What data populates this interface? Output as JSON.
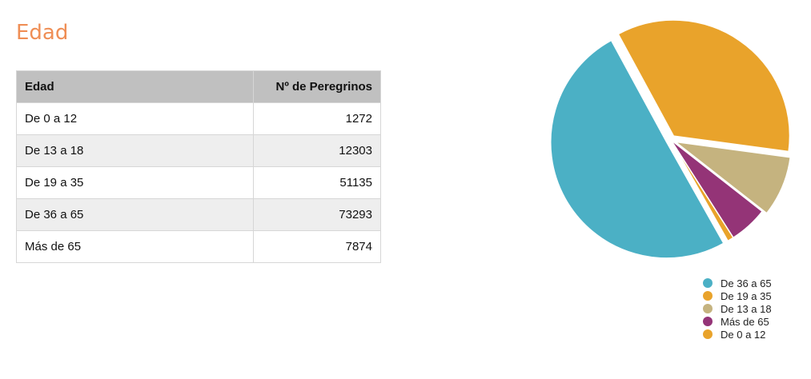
{
  "title": "Edad",
  "table": {
    "headers": [
      "Edad",
      "Nº de Peregrinos"
    ],
    "rows": [
      [
        "De 0 a 12",
        "1272"
      ],
      [
        "De 13 a 18",
        "12303"
      ],
      [
        "De 19 a 35",
        "51135"
      ],
      [
        "De 36 a 65",
        "73293"
      ],
      [
        "Más de 65",
        "7874"
      ]
    ]
  },
  "chart_data": {
    "type": "pie",
    "slices": [
      {
        "label": "De 19 a 35",
        "value": 51135,
        "color": "#e9a32b",
        "exploded": true
      },
      {
        "label": "De 13 a 18",
        "value": 12303,
        "color": "#c5b37f",
        "exploded": true
      },
      {
        "label": "Más de 65",
        "value": 7874,
        "color": "#943477",
        "exploded": false
      },
      {
        "label": "De 0 a 12",
        "value": 1272,
        "color": "#e9a32b",
        "exploded": false
      },
      {
        "label": "De 36 a 65",
        "value": 73293,
        "color": "#4bb0c5",
        "exploded": true
      }
    ],
    "legend": [
      {
        "label": "De 36 a 65",
        "color": "#4bb0c5"
      },
      {
        "label": "De 19 a 35",
        "color": "#e9a32b"
      },
      {
        "label": "De 13 a 18",
        "color": "#c5b37f"
      },
      {
        "label": "Más de 65",
        "color": "#943477"
      },
      {
        "label": "De 0 a 12",
        "color": "#e9a32b"
      }
    ],
    "legend_position": "bottom-right"
  }
}
